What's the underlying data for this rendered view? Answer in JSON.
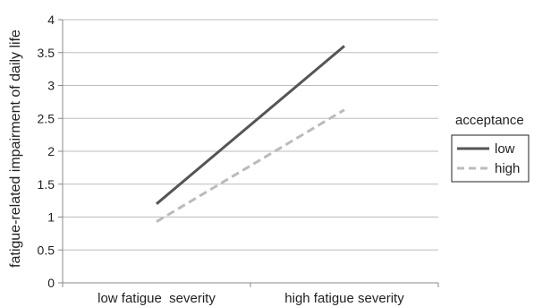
{
  "chart_data": {
    "type": "line",
    "categories": [
      "low fatigue  severity",
      "high fatigue severity"
    ],
    "ylabel": "fatigue-related impairment of daily life",
    "ylim": [
      0,
      4
    ],
    "yticks": [
      0,
      0.5,
      1,
      1.5,
      2,
      2.5,
      3,
      3.5,
      4
    ],
    "grid": true,
    "legend": {
      "title": "acceptance",
      "placement": "right"
    },
    "series": [
      {
        "name": "low",
        "values": [
          1.2,
          3.6
        ],
        "color": "#555555",
        "dash": "solid"
      },
      {
        "name": "high",
        "values": [
          0.93,
          2.63
        ],
        "color": "#bbbbbb",
        "dash": "dashed"
      }
    ]
  }
}
